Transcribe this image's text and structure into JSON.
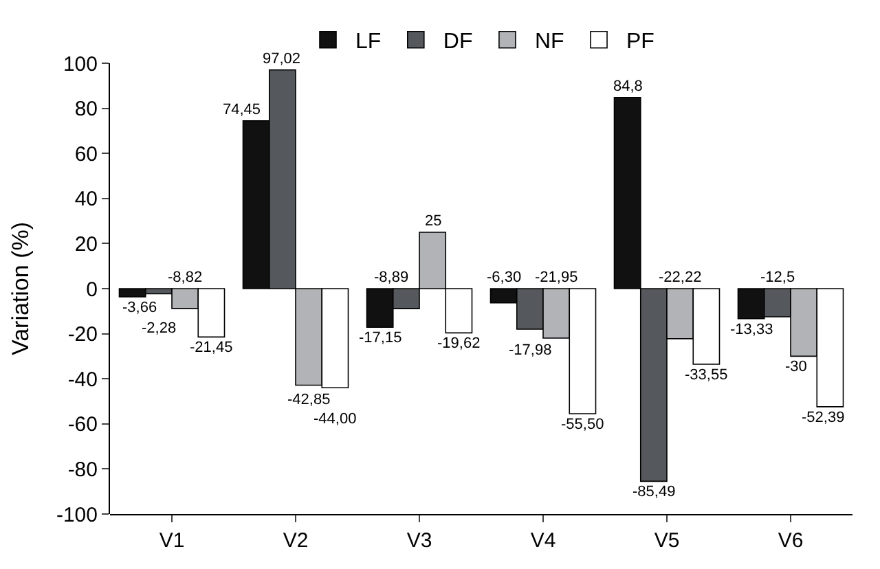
{
  "chart_data": {
    "type": "bar",
    "ylabel": "Variation (%)",
    "categories": [
      "V1",
      "V2",
      "V3",
      "V4",
      "V5",
      "V6"
    ],
    "series": [
      {
        "name": "LF",
        "color": "#111111",
        "values": [
          -3.66,
          74.45,
          -17.15,
          -6.3,
          84.8,
          -13.33
        ],
        "value_labels": [
          "-3,66",
          "74,45",
          "-17,15",
          "-6,30",
          "84,8",
          "-13,33"
        ]
      },
      {
        "name": "DF",
        "color": "#55595d",
        "values": [
          -2.28,
          97.02,
          -8.89,
          -17.98,
          -85.49,
          -12.5
        ],
        "value_labels": [
          "-2,28",
          "97,02",
          "-8,89",
          "-17,98",
          "-85,49",
          "-12,5"
        ]
      },
      {
        "name": "NF",
        "color": "#b1b3b6",
        "values": [
          -8.82,
          -42.85,
          25,
          -21.95,
          -22.22,
          -30
        ],
        "value_labels": [
          "-8,82",
          "-42,85",
          "25",
          "-21,95",
          "-22,22",
          "-30"
        ]
      },
      {
        "name": "PF",
        "color": "#ffffff",
        "values": [
          -21.45,
          -44.0,
          -19.62,
          -55.5,
          -33.55,
          -52.39
        ],
        "value_labels": [
          "-21,45",
          "-44,00",
          "-19,62",
          "-55,50",
          "-33,55",
          "-52,39"
        ]
      }
    ],
    "ylim": [
      -100,
      100
    ],
    "yticks": [
      -100,
      -80,
      -60,
      -40,
      -20,
      0,
      20,
      40,
      60,
      80,
      100
    ],
    "legend": "top"
  }
}
